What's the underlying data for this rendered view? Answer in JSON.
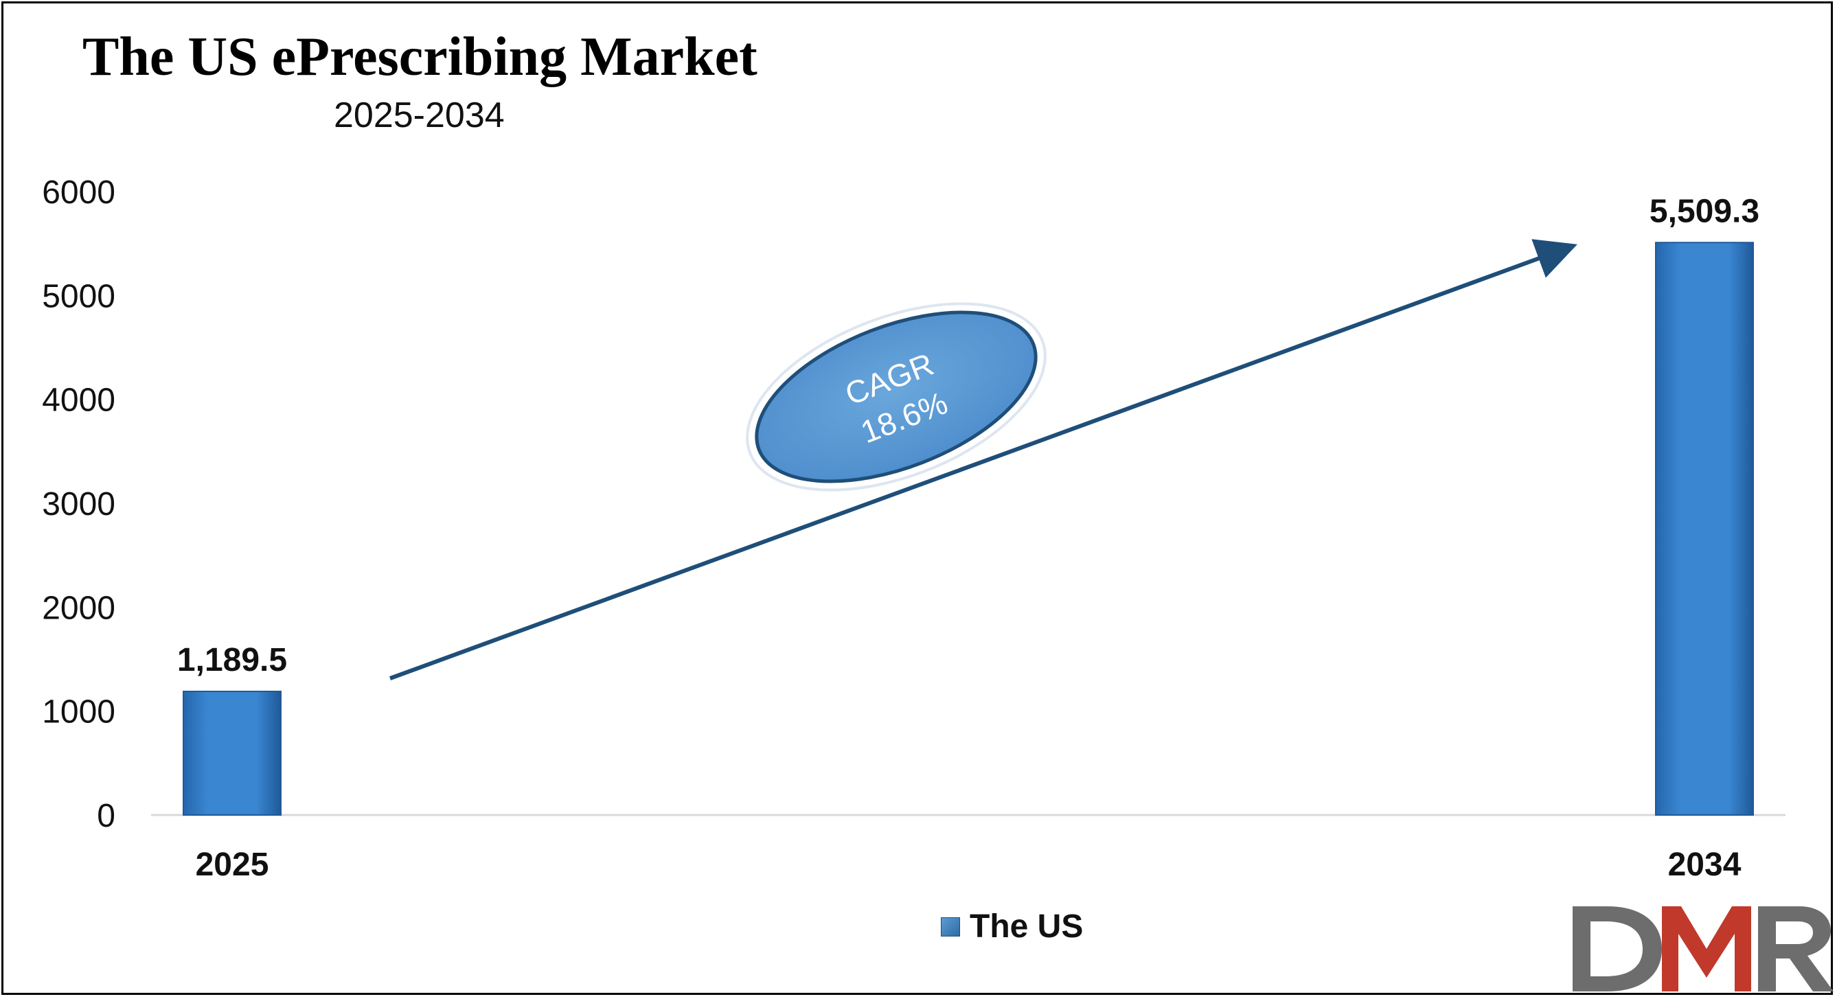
{
  "title": "The US ePrescribing Market",
  "subtitle": "2025-2034",
  "legend": {
    "label": "The US"
  },
  "cagr": {
    "label": "CAGR",
    "value": "18.6%"
  },
  "logo_text": "DMR",
  "colors": {
    "bar": "#2f78c4",
    "bar_dark": "#1f5a99",
    "arrow": "#1f4e79",
    "ellipse": "#5b9bd5",
    "logo_gray": "#6d6d6d",
    "logo_red": "#c0392b"
  },
  "chart_data": {
    "type": "bar",
    "categories": [
      "2025",
      "2034"
    ],
    "series": [
      {
        "name": "The US",
        "values": [
          1189.5,
          5509.3
        ]
      }
    ],
    "data_labels": [
      "1,189.5",
      "5,509.3"
    ],
    "yticks": [
      "0",
      "1000",
      "2000",
      "3000",
      "4000",
      "5000",
      "6000"
    ],
    "ylim": [
      0,
      6000
    ],
    "grid": false,
    "legend_position": "bottom"
  }
}
